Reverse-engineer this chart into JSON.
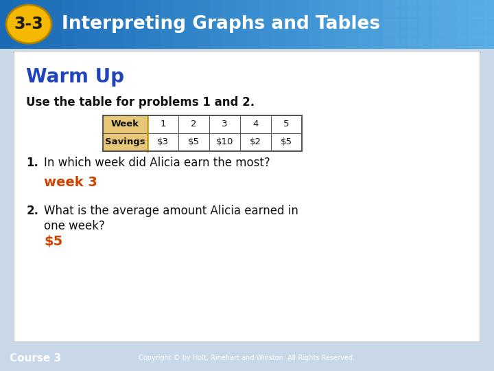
{
  "title_badge": "3-3",
  "title_text": "Interpreting Graphs and Tables",
  "header_bg_left": "#1a6ab5",
  "header_bg_right": "#4a9dd4",
  "header_text_color": "#ffffff",
  "badge_bg": "#f5b800",
  "badge_text_color": "#1a1a1a",
  "slide_bg": "#c8d8e8",
  "content_bg": "#ffffff",
  "content_border": "#bbbbbb",
  "warm_up_color": "#2244bb",
  "answer_color": "#cc4400",
  "body_text_color": "#111111",
  "footer_bg": "#1a6ab5",
  "footer_text": "Course 3",
  "footer_copyright": "Copyright © by Holt, Rinehart and Winston. All Rights Reserved.",
  "warm_up_title": "Warm Up",
  "table_intro": "Use the table for problems 1 and 2.",
  "table_headers": [
    "Week",
    "1",
    "2",
    "3",
    "4",
    "5"
  ],
  "table_savings": [
    "Savings",
    "$3",
    "$5",
    "$10",
    "$2",
    "$5"
  ],
  "table_label_bg": "#e8c878",
  "table_label_border": "#c8a020",
  "table_border_color": "#555555",
  "q1_num": "1.",
  "q1_text": "In which week did Alicia earn the most?",
  "q1_answer": "week 3",
  "q2_num": "2.",
  "q2_line1": "What is the average amount Alicia earned in",
  "q2_line2": "one week?",
  "q2_answer": "$5",
  "tile_color": "#5ba8d8",
  "tile_alpha": 0.35
}
